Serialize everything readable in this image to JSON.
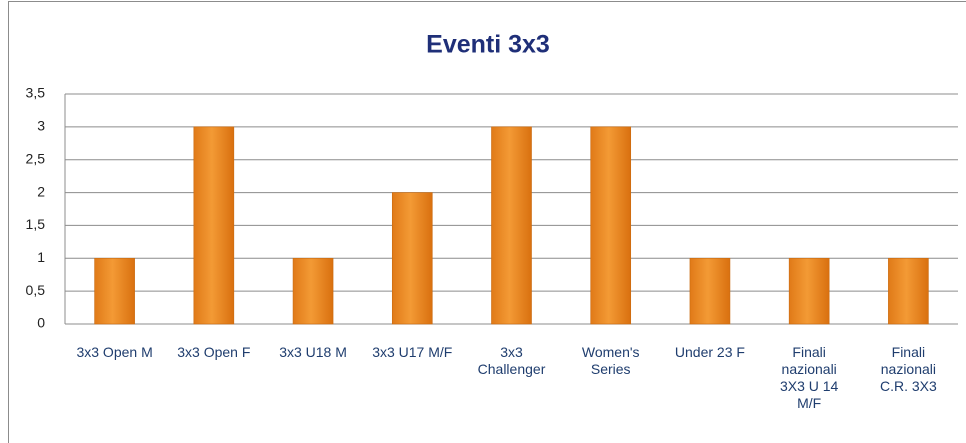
{
  "chart_data": {
    "type": "bar",
    "title": "Eventi 3x3",
    "categories": [
      "3x3 Open M",
      "3x3 Open F",
      "3x3 U18 M",
      "3x3 U17 M/F",
      "3x3 Challenger",
      "Women's Series",
      "Under 23 F",
      "Finali nazionali 3X3 U 14 M/F",
      "Finali nazionali C.R. 3X3"
    ],
    "values": [
      1,
      3,
      1,
      2,
      3,
      3,
      1,
      1,
      1
    ],
    "color": "#f39a35",
    "ylim": [
      0,
      3.5
    ],
    "yticks": [
      0,
      {
        "value": 0.5,
        "label": "0,5"
      },
      1,
      {
        "value": 1.5,
        "label": "1,5"
      },
      2,
      {
        "value": 2.5,
        "label": "2,5"
      },
      3,
      {
        "value": 3.5,
        "label": "3,5"
      }
    ],
    "grid": true
  }
}
